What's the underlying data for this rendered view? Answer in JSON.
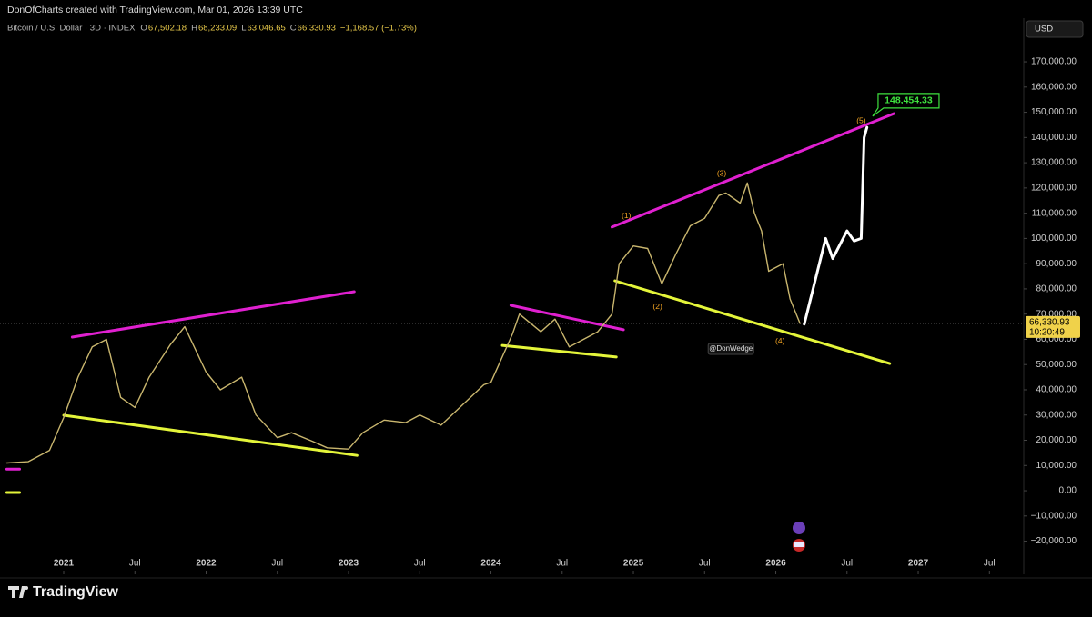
{
  "chart_data": {
    "type": "line",
    "header": "DonOfCharts created with TradingView.com, Mar 01, 2026 13:39 UTC",
    "symbol": "Bitcoin / U.S. Dollar · 3D · INDEX",
    "ohlc": [
      {
        "letter": "O",
        "value": "67,502.18"
      },
      {
        "letter": "H",
        "value": "68,233.09"
      },
      {
        "letter": "L",
        "value": "63,046.65"
      },
      {
        "letter": "C",
        "value": "66,330.93"
      }
    ],
    "change": "−1,168.57 (−1.73%)",
    "currency": "USD",
    "last_price": {
      "value": 66330.93,
      "label": "66,330.93"
    },
    "countdown": "10:20:49",
    "author_tag": "@DonWedge",
    "brand": "TradingView",
    "price_color": "#c9b66e",
    "x": [
      2020.6,
      2020.75,
      2020.9,
      2021.0,
      2021.1,
      2021.2,
      2021.3,
      2021.4,
      2021.5,
      2021.6,
      2021.75,
      2021.85,
      2022.0,
      2022.1,
      2022.25,
      2022.35,
      2022.5,
      2022.6,
      2022.75,
      2022.85,
      2023.0,
      2023.1,
      2023.25,
      2023.4,
      2023.5,
      2023.65,
      2023.8,
      2023.95,
      2024.0,
      2024.15,
      2024.2,
      2024.35,
      2024.45,
      2024.55,
      2024.65,
      2024.75,
      2024.85,
      2024.9,
      2025.0,
      2025.1,
      2025.2,
      2025.3,
      2025.4,
      2025.5,
      2025.6,
      2025.65,
      2025.75,
      2025.8,
      2025.85,
      2025.9,
      2025.95,
      2026.05,
      2026.1,
      2026.17
    ],
    "values": [
      11000,
      11500,
      16000,
      29000,
      45000,
      57000,
      60000,
      37000,
      33000,
      45000,
      58000,
      65000,
      47000,
      40000,
      45000,
      30000,
      21000,
      23000,
      19500,
      17000,
      16500,
      23000,
      28000,
      27000,
      30000,
      26000,
      34000,
      42000,
      43000,
      62000,
      70000,
      63000,
      68000,
      57000,
      60000,
      63000,
      70000,
      90000,
      97000,
      96000,
      82000,
      94000,
      105000,
      108000,
      117000,
      118000,
      114000,
      122000,
      110000,
      103000,
      87000,
      90000,
      76000,
      66330.93
    ],
    "projection": {
      "color": "#ffffff",
      "x": [
        2026.2,
        2026.35,
        2026.4,
        2026.5,
        2026.55,
        2026.6,
        2026.62,
        2026.64
      ],
      "values": [
        66000,
        100000,
        92000,
        103000,
        99000,
        100000,
        140000,
        144000
      ]
    },
    "trendlines": [
      {
        "color": "#e020d0",
        "x": [
          2021.06,
          2023.04
        ],
        "values": [
          60900,
          78900
        ]
      },
      {
        "color": "#e4f53a",
        "x": [
          2021.0,
          2023.06
        ],
        "values": [
          29900,
          14000
        ]
      },
      {
        "color": "#e020d0",
        "x": [
          2020.6,
          2020.69
        ],
        "values": [
          8600,
          8600
        ]
      },
      {
        "color": "#e4f53a",
        "x": [
          2020.6,
          2020.69
        ],
        "values": [
          -700,
          -700
        ]
      },
      {
        "color": "#e020d0",
        "x": [
          2024.14,
          2024.93
        ],
        "values": [
          73500,
          63800
        ]
      },
      {
        "color": "#e4f53a",
        "x": [
          2024.08,
          2024.88
        ],
        "values": [
          57600,
          53000
        ]
      },
      {
        "color": "#e020d0",
        "x": [
          2024.85,
          2026.83
        ],
        "values": [
          104500,
          149500
        ]
      },
      {
        "color": "#e4f53a",
        "x": [
          2024.87,
          2026.8
        ],
        "values": [
          83200,
          50400
        ]
      }
    ],
    "waves": [
      {
        "text": "(1)",
        "x": 2024.95,
        "y": 108800
      },
      {
        "text": "(2)",
        "x": 2025.17,
        "y": 72800
      },
      {
        "text": "(3)",
        "x": 2025.62,
        "y": 125700
      },
      {
        "text": "(4)",
        "x": 2026.03,
        "y": 59100
      },
      {
        "text": "(5)",
        "x": 2026.6,
        "y": 146600
      }
    ],
    "target": {
      "value": 148454.33,
      "label": "148,454.33",
      "x": 2026.68
    },
    "xlim": [
      2020.5527,
      2027.741
    ],
    "ylim": [
      -32400,
      183700
    ],
    "xticks": [
      2021,
      {
        "value": 2021.5,
        "label": "Jul"
      },
      2022,
      {
        "value": 2022.5,
        "label": "Jul"
      },
      2023,
      {
        "value": 2023.5,
        "label": "Jul"
      },
      2024,
      {
        "value": 2024.5,
        "label": "Jul"
      },
      2025,
      {
        "value": 2025.5,
        "label": "Jul"
      },
      2026,
      {
        "value": 2026.5,
        "label": "Jul"
      },
      2027,
      {
        "value": 2027.5,
        "label": "Jul"
      }
    ],
    "yticks": [
      {
        "value": 170000,
        "label": "170,000.00"
      },
      {
        "value": 160000,
        "label": "160,000.00"
      },
      {
        "value": 150000,
        "label": "150,000.00"
      },
      {
        "value": 140000,
        "label": "140,000.00"
      },
      {
        "value": 130000,
        "label": "130,000.00"
      },
      {
        "value": 120000,
        "label": "120,000.00"
      },
      {
        "value": 110000,
        "label": "110,000.00"
      },
      {
        "value": 100000,
        "label": "100,000.00"
      },
      {
        "value": 90000,
        "label": "90,000.00"
      },
      {
        "value": 80000,
        "label": "80,000.00"
      },
      {
        "value": 70000,
        "label": "70,000.00"
      },
      {
        "value": 60000,
        "label": "60,000.00"
      },
      {
        "value": 50000,
        "label": "50,000.00"
      },
      {
        "value": 40000,
        "label": "40,000.00"
      },
      {
        "value": 30000,
        "label": "30,000.00"
      },
      {
        "value": 20000,
        "label": "20,000.00"
      },
      {
        "value": 10000,
        "label": "10,000.00"
      },
      {
        "value": 0,
        "label": "0.00"
      },
      {
        "value": -10000,
        "label": "−10,000.00"
      },
      {
        "value": -20000,
        "label": "−20,000.00"
      }
    ]
  }
}
